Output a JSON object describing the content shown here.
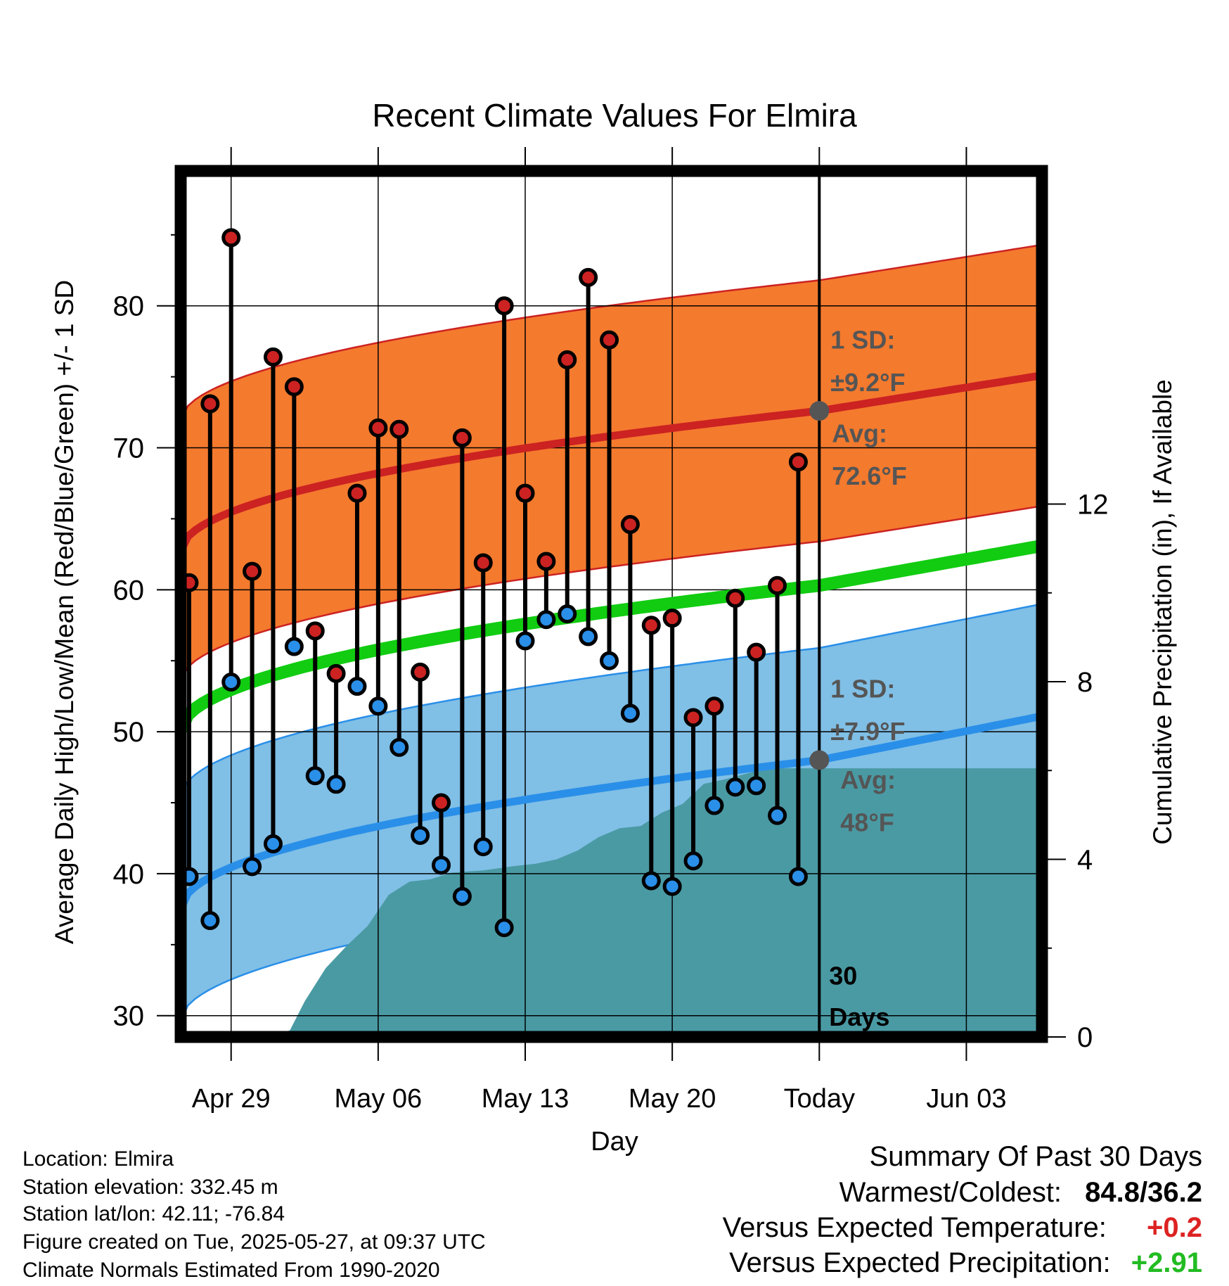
{
  "chart_data": {
    "type": "scatter",
    "title": "Recent Climate Values For Elmira",
    "xlabel": "Day",
    "ylabel_left": "Average Daily High/Low/Mean (Red/Blue/Green) +/- 1 SD",
    "ylabel_right": "Cumulative Precipitation (in), If Available",
    "x_start_date": "2025-04-26",
    "xlim_days": [
      0.6,
      41.6
    ],
    "ylim": [
      28.5,
      89.5
    ],
    "y_ticks": [
      30,
      40,
      50,
      60,
      70,
      80
    ],
    "y_right_ticks": [
      0,
      4,
      8,
      12
    ],
    "y_right_lim": [
      0,
      19.5
    ],
    "x_ticks": [
      {
        "date": "2025-04-29",
        "label": "Apr 29"
      },
      {
        "date": "2025-05-06",
        "label": "May 06"
      },
      {
        "date": "2025-05-13",
        "label": "May 13"
      },
      {
        "date": "2025-05-20",
        "label": "May 20"
      },
      {
        "date": "2025-05-27",
        "label": "Today"
      },
      {
        "date": "2025-06-03",
        "label": "Jun 03"
      }
    ],
    "dates": [
      "2025-04-27",
      "2025-04-28",
      "2025-04-29",
      "2025-04-30",
      "2025-05-01",
      "2025-05-02",
      "2025-05-03",
      "2025-05-04",
      "2025-05-05",
      "2025-05-06",
      "2025-05-07",
      "2025-05-08",
      "2025-05-09",
      "2025-05-10",
      "2025-05-11",
      "2025-05-12",
      "2025-05-13",
      "2025-05-14",
      "2025-05-15",
      "2025-05-16",
      "2025-05-17",
      "2025-05-18",
      "2025-05-19",
      "2025-05-20",
      "2025-05-21",
      "2025-05-22",
      "2025-05-23",
      "2025-05-24",
      "2025-05-25",
      "2025-05-26"
    ],
    "highs": [
      60.5,
      73.1,
      84.8,
      61.3,
      76.4,
      74.3,
      57.1,
      54.1,
      66.8,
      71.4,
      71.3,
      54.2,
      45.0,
      70.7,
      61.9,
      80.0,
      66.8,
      62.0,
      76.2,
      82.0,
      77.6,
      64.6,
      57.5,
      58.0,
      51.0,
      51.8,
      59.4,
      55.6,
      60.3,
      69.0
    ],
    "lows": [
      39.8,
      36.7,
      53.5,
      40.5,
      42.1,
      56.0,
      46.9,
      46.3,
      53.2,
      51.8,
      48.9,
      42.7,
      40.6,
      38.4,
      41.9,
      36.2,
      56.4,
      57.9,
      58.3,
      56.7,
      55.0,
      51.3,
      39.5,
      39.1,
      40.9,
      44.8,
      46.1,
      46.2,
      44.1,
      39.8
    ],
    "normal_high": {
      "start": 62.7,
      "today": 72.6,
      "end": 75.1
    },
    "normal_low": {
      "start": 37.5,
      "today": 48.0,
      "end": 51.1
    },
    "normal_mean": {
      "start": 50.1,
      "today": 60.3,
      "end": 63.1
    },
    "sd_high": 9.2,
    "sd_low": 7.9,
    "precip_cumulative": [
      {
        "day": 5.0,
        "value": 0.0
      },
      {
        "day": 5.8,
        "value": 0.15
      },
      {
        "day": 6.5,
        "value": 0.8
      },
      {
        "day": 7.5,
        "value": 1.55
      },
      {
        "day": 8.5,
        "value": 2.05
      },
      {
        "day": 9.5,
        "value": 2.5
      },
      {
        "day": 10.5,
        "value": 3.2
      },
      {
        "day": 11.5,
        "value": 3.5
      },
      {
        "day": 12.5,
        "value": 3.55
      },
      {
        "day": 13.5,
        "value": 3.7
      },
      {
        "day": 15.0,
        "value": 3.75
      },
      {
        "day": 16.5,
        "value": 3.85
      },
      {
        "day": 17.5,
        "value": 3.9
      },
      {
        "day": 18.5,
        "value": 4.0
      },
      {
        "day": 19.5,
        "value": 4.2
      },
      {
        "day": 20.5,
        "value": 4.5
      },
      {
        "day": 21.5,
        "value": 4.7
      },
      {
        "day": 22.5,
        "value": 4.75
      },
      {
        "day": 23.5,
        "value": 5.05
      },
      {
        "day": 24.5,
        "value": 5.25
      },
      {
        "day": 25.5,
        "value": 5.7
      },
      {
        "day": 26.5,
        "value": 5.8
      },
      {
        "day": 28.5,
        "value": 6.05
      },
      {
        "day": 41.6,
        "value": 6.05
      }
    ],
    "colors": {
      "high": "#cc2222",
      "low": "#2a8fe8",
      "mean": "#11cc11",
      "sd_high_band": "#f47a2e",
      "sd_low_band": "#80bfe6",
      "precip": "#4a9aa4",
      "today_marker": "#555555"
    },
    "annotations": {
      "high_sd": [
        "1 SD:",
        "±9.2°F"
      ],
      "high_avg": [
        "Avg:",
        "72.6°F"
      ],
      "low_sd": [
        "1 SD:",
        "±7.9°F"
      ],
      "low_avg": [
        "Avg:",
        "48°F"
      ],
      "window": [
        "30",
        "Days"
      ]
    }
  },
  "station_info": [
    "Location: Elmira",
    "Station elevation: 332.45 m",
    "Station lat/lon: 42.11; -76.84",
    "Figure created on Tue, 2025-05-27, at 09:37 UTC",
    "Climate Normals Estimated From 1990-2020"
  ],
  "summary": {
    "title": "Summary Of Past 30 Days",
    "warmest_coldest_label": "Warmest/Coldest:",
    "warmest_coldest_value": "84.8/36.2",
    "temp_label": "Versus Expected Temperature:",
    "temp_value": "+0.2",
    "temp_color": "#dd2222",
    "precip_label": "Versus Expected Precipitation:",
    "precip_value": "+2.91",
    "precip_color": "#22bb22"
  }
}
